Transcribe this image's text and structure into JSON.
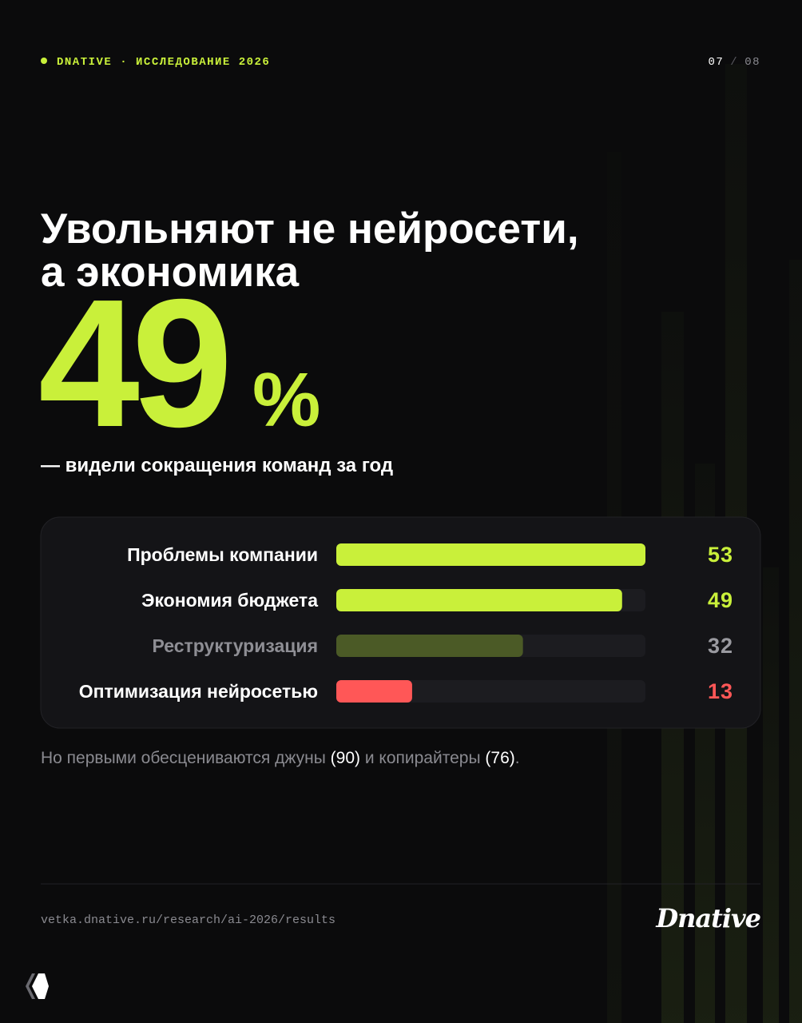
{
  "header": {
    "brand": "DNATIVE · ИССЛЕДОВАНИЕ 2026",
    "page": "07",
    "separator": "/",
    "total": "08"
  },
  "title": [
    "Увольняют не нейросети,",
    "а экономика"
  ],
  "stat": {
    "number": "49",
    "unit": "%"
  },
  "subtitle": "— видели сокращения команд за год",
  "chart_data": {
    "type": "bar",
    "orientation": "horizontal",
    "categories": [
      "Проблемы компании",
      "Экономия бюджета",
      "Реструктуризация",
      "Оптимизация нейросетью"
    ],
    "values": [
      53,
      49,
      32,
      13
    ],
    "colors": [
      "#c9f03a",
      "#c9f03a",
      "#4b5a26",
      "#ff5757"
    ],
    "label_colors": [
      "#ffffff",
      "#ffffff",
      "#8e8e94",
      "#ffffff"
    ],
    "value_colors": [
      "#c9f03a",
      "#c9f03a",
      "#9a9aa0",
      "#ff5757"
    ],
    "xlim": [
      0,
      53
    ]
  },
  "note": [
    {
      "text": "Но первыми обесцениваются джуны ",
      "highlight": false
    },
    {
      "text": "(90)",
      "highlight": true
    },
    {
      "text": " и копирайтеры ",
      "highlight": false
    },
    {
      "text": "(76)",
      "highlight": true
    },
    {
      "text": ".",
      "highlight": false
    }
  ],
  "footer": {
    "url": "vetka.dnative.ru/research/ai-2026/results",
    "logo": "Dnative"
  }
}
